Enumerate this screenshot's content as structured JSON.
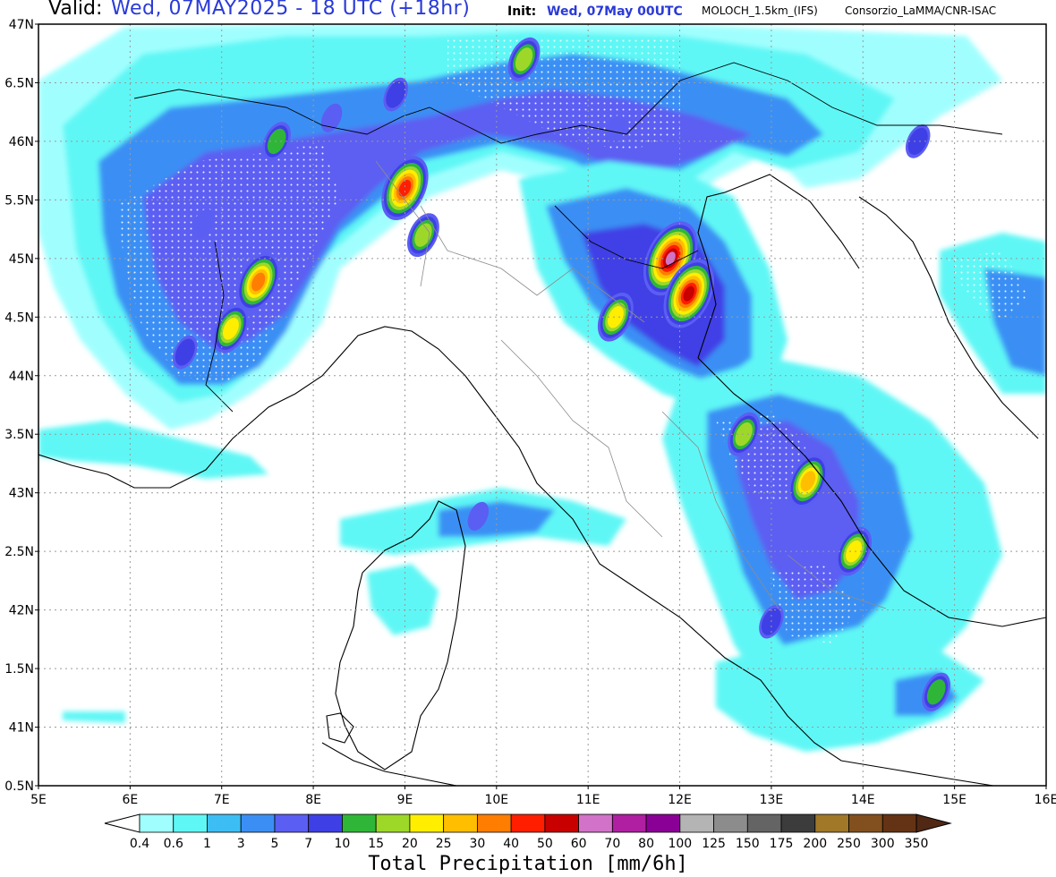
{
  "header": {
    "valid_key": "Valid:",
    "valid_value": "Wed, 07MAY2025 - 18 UTC (+18hr)",
    "init_key": "Init:",
    "init_value": "Wed, 07May 00UTC",
    "model": "MOLOCH_1.5km_(IFS)",
    "credit": "Consorzio_LaMMA/CNR-ISAC"
  },
  "map": {
    "lat_labels": [
      "47N",
      "6.5N",
      "46N",
      "5.5N",
      "45N",
      "4.5N",
      "44N",
      "3.5N",
      "43N",
      "2.5N",
      "42N",
      "1.5N",
      "41N",
      "0.5N"
    ],
    "lon_labels": [
      "5E",
      "6E",
      "7E",
      "8E",
      "9E",
      "10E",
      "11E",
      "12E",
      "13E",
      "14E",
      "15E",
      "16E"
    ],
    "lat_range": [
      40.5,
      47
    ],
    "lon_range": [
      5,
      16
    ],
    "grid": "dotted",
    "colors": {
      "frame": "#000000",
      "grid": "#9a9a9a",
      "coast": "#000000",
      "border": "#8c8c8c"
    }
  },
  "precip_cells": [
    {
      "lon": 5.8,
      "lat": 46.4,
      "mm": 1
    },
    {
      "lon": 6.3,
      "lat": 45.9,
      "mm": 3
    },
    {
      "lon": 6.8,
      "lat": 45.3,
      "mm": 5
    },
    {
      "lon": 7.4,
      "lat": 44.8,
      "mm": 30
    },
    {
      "lon": 7.1,
      "lat": 44.4,
      "mm": 20
    },
    {
      "lon": 6.6,
      "lat": 44.2,
      "mm": 7
    },
    {
      "lon": 7.6,
      "lat": 46.0,
      "mm": 10
    },
    {
      "lon": 8.2,
      "lat": 46.2,
      "mm": 5
    },
    {
      "lon": 9.0,
      "lat": 45.6,
      "mm": 40
    },
    {
      "lon": 9.2,
      "lat": 45.2,
      "mm": 15
    },
    {
      "lon": 8.9,
      "lat": 46.4,
      "mm": 7
    },
    {
      "lon": 10.3,
      "lat": 46.7,
      "mm": 15
    },
    {
      "lon": 11.3,
      "lat": 46.1,
      "mm": 5
    },
    {
      "lon": 11.9,
      "lat": 45.0,
      "mm": 60
    },
    {
      "lon": 12.1,
      "lat": 44.7,
      "mm": 50
    },
    {
      "lon": 11.3,
      "lat": 44.5,
      "mm": 20
    },
    {
      "lon": 12.7,
      "lat": 43.5,
      "mm": 15
    },
    {
      "lon": 13.4,
      "lat": 43.1,
      "mm": 25
    },
    {
      "lon": 13.9,
      "lat": 42.5,
      "mm": 20
    },
    {
      "lon": 13.0,
      "lat": 41.9,
      "mm": 7
    },
    {
      "lon": 9.8,
      "lat": 42.8,
      "mm": 5
    },
    {
      "lon": 14.8,
      "lat": 41.3,
      "mm": 10
    },
    {
      "lon": 15.7,
      "lat": 44.9,
      "mm": 3
    },
    {
      "lon": 14.6,
      "lat": 46.0,
      "mm": 7
    }
  ],
  "legend": {
    "title": "Total Precipitation [mm/6h]",
    "labels": [
      "0.4",
      "0.6",
      "1",
      "3",
      "5",
      "7",
      "10",
      "15",
      "20",
      "25",
      "30",
      "40",
      "50",
      "60",
      "70",
      "80",
      "100",
      "125",
      "150",
      "175",
      "200",
      "250",
      "300",
      "350"
    ],
    "colors": [
      "#a0fffe",
      "#5ff7f5",
      "#3cbef5",
      "#3b8ff4",
      "#5b5ef2",
      "#3f3fe6",
      "#2fb638",
      "#9dd829",
      "#ffee00",
      "#ffbe00",
      "#ff7d00",
      "#ff1e00",
      "#c80000",
      "#d272c8",
      "#b01ea1",
      "#8a0096",
      "#b4b4b4",
      "#8c8c8c",
      "#646464",
      "#3c3c3c",
      "#a07828",
      "#82501e",
      "#643214",
      "#502814"
    ],
    "under_color": "#ffffff",
    "over_color": "#502814"
  }
}
